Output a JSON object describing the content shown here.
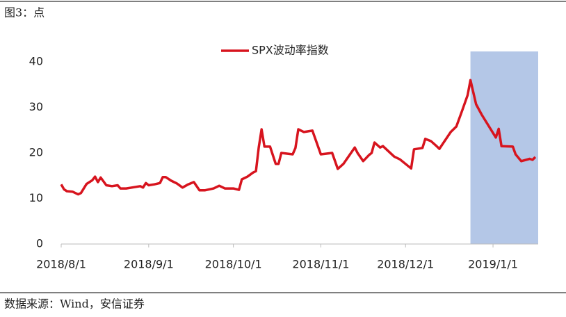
{
  "chart_data": {
    "type": "line",
    "title": "图3：点",
    "source": "数据来源：Wind，安信证券",
    "x": [
      "2018-08-01",
      "2018-08-02",
      "2018-08-03",
      "2018-08-05",
      "2018-08-07",
      "2018-08-08",
      "2018-08-10",
      "2018-08-12",
      "2018-08-13",
      "2018-08-14",
      "2018-08-15",
      "2018-08-17",
      "2018-08-19",
      "2018-08-21",
      "2018-08-22",
      "2018-08-24",
      "2018-08-26",
      "2018-08-29",
      "2018-08-30",
      "2018-08-31",
      "2018-09-01",
      "2018-09-03",
      "2018-09-05",
      "2018-09-06",
      "2018-09-07",
      "2018-09-09",
      "2018-09-11",
      "2018-09-13",
      "2018-09-15",
      "2018-09-17",
      "2018-09-19",
      "2018-09-21",
      "2018-09-24",
      "2018-09-26",
      "2018-09-28",
      "2018-10-01",
      "2018-10-03",
      "2018-10-04",
      "2018-10-06",
      "2018-10-08",
      "2018-10-09",
      "2018-10-10",
      "2018-10-11",
      "2018-10-12",
      "2018-10-14",
      "2018-10-16",
      "2018-10-17",
      "2018-10-18",
      "2018-10-22",
      "2018-10-23",
      "2018-10-24",
      "2018-10-26",
      "2018-10-29",
      "2018-11-01",
      "2018-11-05",
      "2018-11-07",
      "2018-11-09",
      "2018-11-12",
      "2018-11-13",
      "2018-11-14",
      "2018-11-16",
      "2018-11-18",
      "2018-11-19",
      "2018-11-20",
      "2018-11-22",
      "2018-11-23",
      "2018-11-27",
      "2018-11-29",
      "2018-12-03",
      "2018-12-04",
      "2018-12-07",
      "2018-12-08",
      "2018-12-10",
      "2018-12-12",
      "2018-12-13",
      "2018-12-17",
      "2018-12-19",
      "2018-12-21",
      "2018-12-23",
      "2018-12-24",
      "2018-12-26",
      "2018-12-28",
      "2019-01-02",
      "2019-01-03",
      "2019-01-04",
      "2019-01-08",
      "2019-01-09",
      "2019-01-11",
      "2019-01-14",
      "2019-01-15",
      "2019-01-16"
    ],
    "series": [
      {
        "name": "SPX波动率指数",
        "color": "#d7141e",
        "values": [
          13.1,
          12,
          11.6,
          11.5,
          10.9,
          11.2,
          13.2,
          14,
          14.8,
          13.6,
          14.6,
          12.9,
          12.7,
          12.9,
          12.2,
          12.2,
          12.4,
          12.7,
          12.4,
          13.4,
          12.9,
          13.1,
          13.4,
          14.7,
          14.7,
          13.9,
          13.3,
          12.4,
          13.1,
          13.6,
          11.8,
          11.8,
          12.2,
          12.8,
          12.2,
          12.2,
          11.9,
          14.2,
          14.8,
          15.7,
          16,
          21.2,
          25.2,
          21.4,
          21.4,
          17.6,
          17.6,
          20,
          19.7,
          21.1,
          25.2,
          24.6,
          24.9,
          19.7,
          20,
          16.5,
          17.6,
          20.3,
          21.2,
          20,
          18.2,
          19.5,
          20,
          22.3,
          21.2,
          21.5,
          19.2,
          18.6,
          16.6,
          20.8,
          21.1,
          23.1,
          22.6,
          21.5,
          20.9,
          24.6,
          25.8,
          29.2,
          32.7,
          36,
          30.7,
          28.4,
          23.4,
          25.3,
          21.5,
          21.4,
          19.7,
          18.2,
          18.7,
          18.5,
          19.1
        ]
      }
    ],
    "highlight": {
      "x": [
        "2018-12-24",
        "2019-01-17"
      ],
      "color": "#b4c7e7"
    },
    "xlim": [
      "2018-08-01",
      "2019-01-17"
    ],
    "xticks": [
      {
        "value": "2018-08-01",
        "label": "2018/8/1"
      },
      {
        "value": "2018-09-01",
        "label": "2018/9/1"
      },
      {
        "value": "2018-10-01",
        "label": "2018/10/1"
      },
      {
        "value": "2018-11-01",
        "label": "2018/11/1"
      },
      {
        "value": "2018-12-01",
        "label": "2018/12/1"
      },
      {
        "value": "2019-01-01",
        "label": "2019/1/1"
      }
    ],
    "ylim": [
      0,
      42.3
    ],
    "yticks": [
      0,
      10,
      20,
      30,
      40
    ],
    "grid": false,
    "legend": "top"
  }
}
